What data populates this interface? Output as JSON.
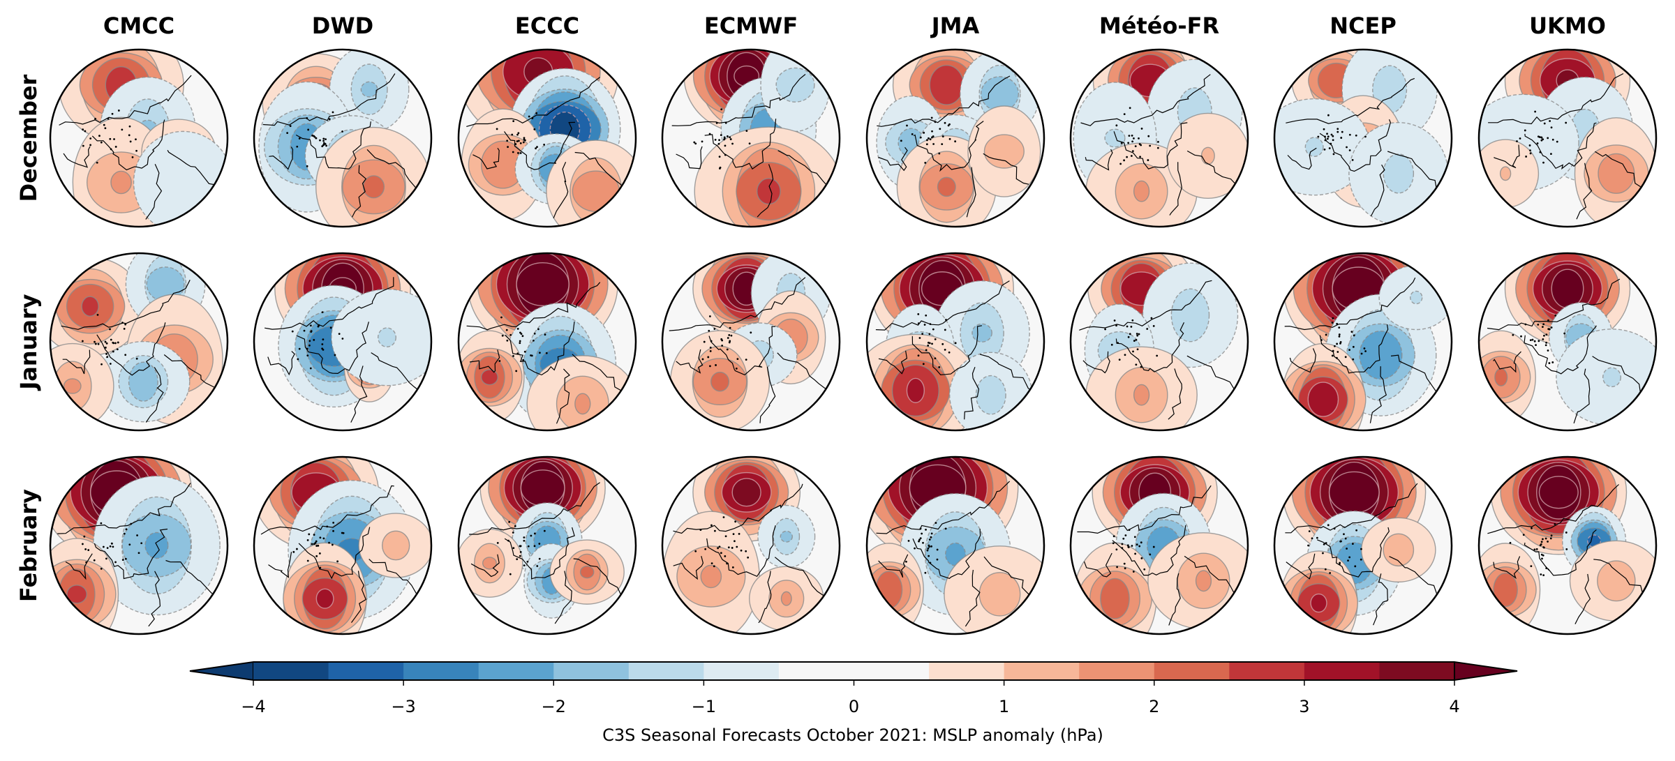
{
  "chart_data": {
    "type": "heatmap",
    "title": "",
    "projection": "north-polar-stereographic",
    "columns": [
      "CMCC",
      "DWD",
      "ECCC",
      "ECMWF",
      "JMA",
      "Météo-FR",
      "NCEP",
      "UKMO"
    ],
    "rows": [
      "December",
      "January",
      "February"
    ],
    "colorbar": {
      "label": "C3S Seasonal Forecasts October 2021: MSLP anomaly (hPa)",
      "range": [
        -4,
        4
      ],
      "step": 0.5,
      "extend": "both",
      "ticks": [
        -4,
        -3,
        -2,
        -1,
        0,
        1,
        2,
        3,
        4
      ],
      "tick_labels": [
        "−4",
        "−3",
        "−2",
        "−1",
        "0",
        "1",
        "2",
        "3",
        "4"
      ],
      "colors": [
        "#0d3b70",
        "#114781",
        "#1f63a8",
        "#3884bb",
        "#5ba3cf",
        "#8fc2de",
        "#bbdaea",
        "#deebf2",
        "#f7f7f7",
        "#f7f7f7",
        "#fcdfcf",
        "#f7b799",
        "#ec9374",
        "#d9684f",
        "#c13639",
        "#a11228",
        "#7d0b21",
        "#67001f"
      ]
    },
    "note": "Anomaly centres given as approximate peak value (hPa) at normalized map position x,y in [-1,1] (x right, y down), with spread in the same units",
    "panels": {
      "December": {
        "CMCC": [
          {
            "v": 2.6,
            "x": -0.2,
            "y": -0.6,
            "s": 0.35
          },
          {
            "v": -1.5,
            "x": 0.1,
            "y": -0.1,
            "s": 0.3
          },
          {
            "v": 1.5,
            "x": -0.2,
            "y": 0.5,
            "s": 0.35
          },
          {
            "v": 1.2,
            "x": 0.45,
            "y": 0.15,
            "s": 0.2
          },
          {
            "v": -0.8,
            "x": 0.5,
            "y": 0.5,
            "s": 0.3
          }
        ],
        "DWD": [
          {
            "v": 2.3,
            "x": -0.3,
            "y": -0.4,
            "s": 0.3
          },
          {
            "v": -1.5,
            "x": 0.3,
            "y": -0.55,
            "s": 0.25
          },
          {
            "v": -2.2,
            "x": -0.4,
            "y": 0.1,
            "s": 0.35
          },
          {
            "v": -1.8,
            "x": 0.1,
            "y": 0.2,
            "s": 0.25
          },
          {
            "v": 2.0,
            "x": 0.35,
            "y": 0.55,
            "s": 0.35
          }
        ],
        "ECCC": [
          {
            "v": 3.5,
            "x": -0.1,
            "y": -0.75,
            "s": 0.45
          },
          {
            "v": -3.6,
            "x": 0.2,
            "y": -0.1,
            "s": 0.35
          },
          {
            "v": 1.9,
            "x": -0.5,
            "y": 0.3,
            "s": 0.3
          },
          {
            "v": -2.4,
            "x": 0.1,
            "y": 0.35,
            "s": 0.22
          },
          {
            "v": 1.8,
            "x": 0.55,
            "y": 0.6,
            "s": 0.3
          }
        ],
        "ECMWF": [
          {
            "v": 4.5,
            "x": -0.05,
            "y": -0.7,
            "s": 0.35
          },
          {
            "v": -2.3,
            "x": 0.2,
            "y": -0.1,
            "s": 0.3
          },
          {
            "v": -1.2,
            "x": 0.5,
            "y": -0.6,
            "s": 0.25
          },
          {
            "v": 2.5,
            "x": 0.2,
            "y": 0.6,
            "s": 0.4
          }
        ],
        "JMA": [
          {
            "v": 2.8,
            "x": -0.1,
            "y": -0.6,
            "s": 0.3
          },
          {
            "v": -1.8,
            "x": 0.5,
            "y": -0.5,
            "s": 0.25
          },
          {
            "v": -1.6,
            "x": -0.5,
            "y": 0.05,
            "s": 0.25
          },
          {
            "v": -1.5,
            "x": 0.0,
            "y": 0.1,
            "s": 0.2
          },
          {
            "v": 2.0,
            "x": -0.1,
            "y": 0.55,
            "s": 0.3
          },
          {
            "v": 1.2,
            "x": 0.55,
            "y": 0.15,
            "s": 0.25
          }
        ],
        "Météo-FR": [
          {
            "v": 3.2,
            "x": -0.1,
            "y": -0.65,
            "s": 0.32
          },
          {
            "v": -1.2,
            "x": 0.4,
            "y": -0.3,
            "s": 0.3
          },
          {
            "v": -1.0,
            "x": -0.5,
            "y": 0.0,
            "s": 0.3
          },
          {
            "v": 1.5,
            "x": -0.2,
            "y": 0.6,
            "s": 0.3
          },
          {
            "v": 1.0,
            "x": 0.55,
            "y": 0.2,
            "s": 0.25
          }
        ],
        "NCEP": [
          {
            "v": 2.4,
            "x": -0.3,
            "y": -0.65,
            "s": 0.25
          },
          {
            "v": -1.2,
            "x": 0.3,
            "y": -0.55,
            "s": 0.3
          },
          {
            "v": 1.7,
            "x": 0.0,
            "y": 0.15,
            "s": 0.3
          },
          {
            "v": -1.0,
            "x": -0.55,
            "y": 0.1,
            "s": 0.3
          },
          {
            "v": -1.1,
            "x": 0.4,
            "y": 0.4,
            "s": 0.3
          }
        ],
        "UKMO": [
          {
            "v": 3.5,
            "x": 0.0,
            "y": -0.65,
            "s": 0.35
          },
          {
            "v": -1.1,
            "x": 0.2,
            "y": -0.1,
            "s": 0.3
          },
          {
            "v": 1.7,
            "x": 0.55,
            "y": 0.4,
            "s": 0.3
          },
          {
            "v": -0.9,
            "x": -0.5,
            "y": 0.05,
            "s": 0.3
          },
          {
            "v": 1.0,
            "x": -0.7,
            "y": 0.4,
            "s": 0.2
          }
        ]
      },
      "January": {
        "CMCC": [
          {
            "v": 2.5,
            "x": -0.55,
            "y": -0.4,
            "s": 0.3
          },
          {
            "v": -1.8,
            "x": 0.3,
            "y": -0.65,
            "s": 0.25
          },
          {
            "v": 1.8,
            "x": 0.4,
            "y": 0.2,
            "s": 0.35
          },
          {
            "v": -1.8,
            "x": 0.05,
            "y": 0.45,
            "s": 0.25
          },
          {
            "v": 1.5,
            "x": -0.75,
            "y": 0.5,
            "s": 0.25
          }
        ],
        "DWD": [
          {
            "v": 4.5,
            "x": 0.0,
            "y": -0.6,
            "s": 0.38
          },
          {
            "v": -2.8,
            "x": -0.1,
            "y": 0.05,
            "s": 0.35
          },
          {
            "v": 2.2,
            "x": 0.3,
            "y": 0.3,
            "s": 0.18
          },
          {
            "v": -1.0,
            "x": 0.5,
            "y": -0.05,
            "s": 0.3
          }
        ],
        "ECCC": [
          {
            "v": 4.8,
            "x": -0.05,
            "y": -0.65,
            "s": 0.42
          },
          {
            "v": -2.6,
            "x": 0.15,
            "y": 0.25,
            "s": 0.35
          },
          {
            "v": 2.5,
            "x": -0.65,
            "y": 0.4,
            "s": 0.25
          },
          {
            "v": 1.5,
            "x": 0.4,
            "y": 0.7,
            "s": 0.3
          }
        ],
        "ECMWF": [
          {
            "v": 4.2,
            "x": -0.05,
            "y": -0.6,
            "s": 0.3
          },
          {
            "v": -1.2,
            "x": 0.45,
            "y": -0.55,
            "s": 0.25
          },
          {
            "v": 1.8,
            "x": 0.45,
            "y": -0.05,
            "s": 0.25
          },
          {
            "v": -1.2,
            "x": 0.1,
            "y": 0.15,
            "s": 0.2
          },
          {
            "v": 2.0,
            "x": -0.35,
            "y": 0.45,
            "s": 0.3
          }
        ],
        "JMA": [
          {
            "v": 4.6,
            "x": -0.15,
            "y": -0.6,
            "s": 0.4
          },
          {
            "v": -1.5,
            "x": 0.3,
            "y": -0.1,
            "s": 0.3
          },
          {
            "v": -1.3,
            "x": -0.4,
            "y": 0.1,
            "s": 0.25
          },
          {
            "v": 3.0,
            "x": -0.45,
            "y": 0.55,
            "s": 0.35
          },
          {
            "v": -1.2,
            "x": 0.4,
            "y": 0.6,
            "s": 0.25
          }
        ],
        "Météo-FR": [
          {
            "v": 3.3,
            "x": -0.2,
            "y": -0.6,
            "s": 0.3
          },
          {
            "v": -1.3,
            "x": 0.35,
            "y": -0.3,
            "s": 0.3
          },
          {
            "v": -1.3,
            "x": -0.45,
            "y": 0.1,
            "s": 0.25
          },
          {
            "v": 1.5,
            "x": -0.2,
            "y": 0.6,
            "s": 0.3
          }
        ],
        "NCEP": [
          {
            "v": 4.8,
            "x": -0.05,
            "y": -0.6,
            "s": 0.42
          },
          {
            "v": -2.3,
            "x": 0.2,
            "y": 0.15,
            "s": 0.35
          },
          {
            "v": 3.2,
            "x": -0.45,
            "y": 0.65,
            "s": 0.3
          },
          {
            "v": -1.0,
            "x": 0.6,
            "y": -0.5,
            "s": 0.2
          }
        ],
        "UKMO": [
          {
            "v": 4.2,
            "x": 0.0,
            "y": -0.6,
            "s": 0.35
          },
          {
            "v": -1.8,
            "x": 0.15,
            "y": -0.05,
            "s": 0.2
          },
          {
            "v": 2.0,
            "x": -0.75,
            "y": 0.4,
            "s": 0.25
          },
          {
            "v": -1.0,
            "x": 0.5,
            "y": 0.4,
            "s": 0.3
          }
        ]
      },
      "February": {
        "CMCC": [
          {
            "v": 4.8,
            "x": -0.25,
            "y": -0.6,
            "s": 0.42
          },
          {
            "v": -2.0,
            "x": 0.2,
            "y": 0.0,
            "s": 0.4
          },
          {
            "v": 2.5,
            "x": -0.7,
            "y": 0.55,
            "s": 0.3
          }
        ],
        "DWD": [
          {
            "v": 3.3,
            "x": -0.3,
            "y": -0.6,
            "s": 0.35
          },
          {
            "v": -2.5,
            "x": 0.1,
            "y": 0.05,
            "s": 0.4
          },
          {
            "v": 3.0,
            "x": -0.2,
            "y": 0.6,
            "s": 0.3
          },
          {
            "v": 1.2,
            "x": 0.6,
            "y": 0.0,
            "s": 0.2
          }
        ],
        "ECCC": [
          {
            "v": 4.8,
            "x": -0.05,
            "y": -0.65,
            "s": 0.35
          },
          {
            "v": -2.3,
            "x": 0.0,
            "y": -0.05,
            "s": 0.22
          },
          {
            "v": -2.2,
            "x": 0.05,
            "y": 0.4,
            "s": 0.2
          },
          {
            "v": 2.0,
            "x": 0.45,
            "y": 0.3,
            "s": 0.2
          },
          {
            "v": 1.5,
            "x": -0.65,
            "y": 0.2,
            "s": 0.2
          }
        ],
        "ECMWF": [
          {
            "v": 3.6,
            "x": -0.05,
            "y": -0.6,
            "s": 0.3
          },
          {
            "v": -1.5,
            "x": 0.4,
            "y": -0.1,
            "s": 0.18
          },
          {
            "v": 1.5,
            "x": -0.45,
            "y": 0.35,
            "s": 0.35
          },
          {
            "v": 1.5,
            "x": 0.4,
            "y": 0.6,
            "s": 0.2
          }
        ],
        "JMA": [
          {
            "v": 4.8,
            "x": -0.2,
            "y": -0.65,
            "s": 0.45
          },
          {
            "v": -2.0,
            "x": 0.0,
            "y": 0.1,
            "s": 0.35
          },
          {
            "v": 2.3,
            "x": -0.75,
            "y": 0.5,
            "s": 0.25
          },
          {
            "v": 1.2,
            "x": 0.5,
            "y": 0.55,
            "s": 0.3
          }
        ],
        "Météo-FR": [
          {
            "v": 4.2,
            "x": -0.05,
            "y": -0.6,
            "s": 0.35
          },
          {
            "v": -2.2,
            "x": 0.05,
            "y": 0.0,
            "s": 0.3
          },
          {
            "v": 2.2,
            "x": -0.5,
            "y": 0.6,
            "s": 0.3
          },
          {
            "v": 1.5,
            "x": 0.5,
            "y": 0.4,
            "s": 0.3
          }
        ],
        "NCEP": [
          {
            "v": 4.8,
            "x": -0.1,
            "y": -0.6,
            "s": 0.4
          },
          {
            "v": -2.3,
            "x": -0.1,
            "y": 0.2,
            "s": 0.3
          },
          {
            "v": 3.0,
            "x": -0.5,
            "y": 0.65,
            "s": 0.28
          },
          {
            "v": 1.3,
            "x": 0.4,
            "y": 0.05,
            "s": 0.2
          }
        ],
        "UKMO": [
          {
            "v": 4.6,
            "x": -0.1,
            "y": -0.6,
            "s": 0.38
          },
          {
            "v": -3.0,
            "x": 0.3,
            "y": -0.05,
            "s": 0.2
          },
          {
            "v": 2.2,
            "x": -0.7,
            "y": 0.5,
            "s": 0.25
          },
          {
            "v": 1.3,
            "x": 0.55,
            "y": 0.4,
            "s": 0.25
          }
        ]
      }
    }
  }
}
